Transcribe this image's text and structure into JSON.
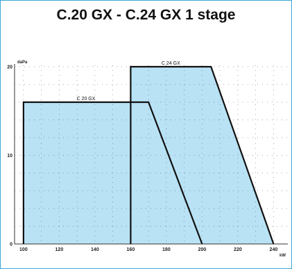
{
  "title": "C.20 GX - C.24 GX 1 stage",
  "chart_data": {
    "type": "area",
    "title": "C.20 GX - C.24 GX 1 stage",
    "xlabel": "kW",
    "ylabel": "daPa",
    "xlim": [
      95,
      248
    ],
    "ylim": [
      0,
      20
    ],
    "x_ticks": [
      "100",
      "120",
      "140",
      "160",
      "180",
      "200",
      "220",
      "240",
      "kW"
    ],
    "y_ticks": [
      "0",
      "10",
      "20"
    ],
    "fill_color": "#b9e2f5",
    "line_color": "#111111",
    "grid": true,
    "series": [
      {
        "name": "C 20 GX",
        "points": [
          [
            100,
            0
          ],
          [
            100,
            16
          ],
          [
            170,
            16
          ],
          [
            200,
            0
          ]
        ]
      },
      {
        "name": "C 24 GX",
        "points": [
          [
            160,
            0
          ],
          [
            160,
            20
          ],
          [
            205,
            20
          ],
          [
            240,
            0
          ]
        ]
      }
    ]
  }
}
